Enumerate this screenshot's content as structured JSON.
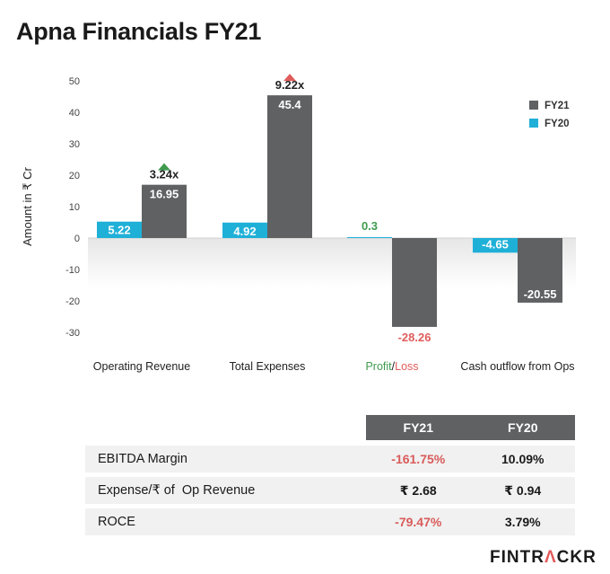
{
  "title": "Apna Financials FY21",
  "chart_data": {
    "type": "bar",
    "ylabel": "Amount in ₹ Cr",
    "ylim": [
      -35,
      50
    ],
    "yticks": [
      50,
      40,
      30,
      20,
      10,
      0,
      -10,
      -20,
      -30
    ],
    "categories": [
      "Operating Revenue",
      "Total Expenses",
      "Profit/Loss",
      "Cash outflow from Ops"
    ],
    "category_parts": {
      "profit": "Profit",
      "separator": "/",
      "loss": "Loss"
    },
    "series": [
      {
        "name": "FY20",
        "color": "#1fb0d8",
        "values": [
          5.22,
          4.92,
          0.3,
          -4.65
        ],
        "labels": [
          "5.22",
          "4.92",
          "0.3",
          "-4.65"
        ]
      },
      {
        "name": "FY21",
        "color": "#5f6162",
        "values": [
          16.95,
          45.4,
          -28.26,
          -20.55
        ],
        "labels": [
          "16.95",
          "45.4",
          "-28.26",
          "-20.55"
        ]
      }
    ],
    "legend_order": [
      "FY21",
      "FY20"
    ],
    "legend_placement": "top-right",
    "growth_annotations": [
      {
        "category": "Operating Revenue",
        "text": "3.24x",
        "direction": "up",
        "color": "#3f9b4f"
      },
      {
        "category": "Total Expenses",
        "text": "9.22x",
        "direction": "up",
        "color": "#e05c5c"
      }
    ],
    "colors": {
      "positive": "#3f9b4f",
      "negative": "#e05c5c"
    }
  },
  "table": {
    "headers": [
      "FY21",
      "FY20"
    ],
    "rows": [
      {
        "label": "EBITDA Margin",
        "fy21": "-161.75%",
        "fy20": "10.09%"
      },
      {
        "label": "Expense/₹ of  Op Revenue",
        "fy21": "₹ 2.68",
        "fy20": "₹ 0.94"
      },
      {
        "label": "ROCE",
        "fy21": "-79.47%",
        "fy20": "3.79%"
      }
    ]
  },
  "brand": {
    "part1": "FINTR",
    "accent": "Λ",
    "part2": "CKR"
  }
}
